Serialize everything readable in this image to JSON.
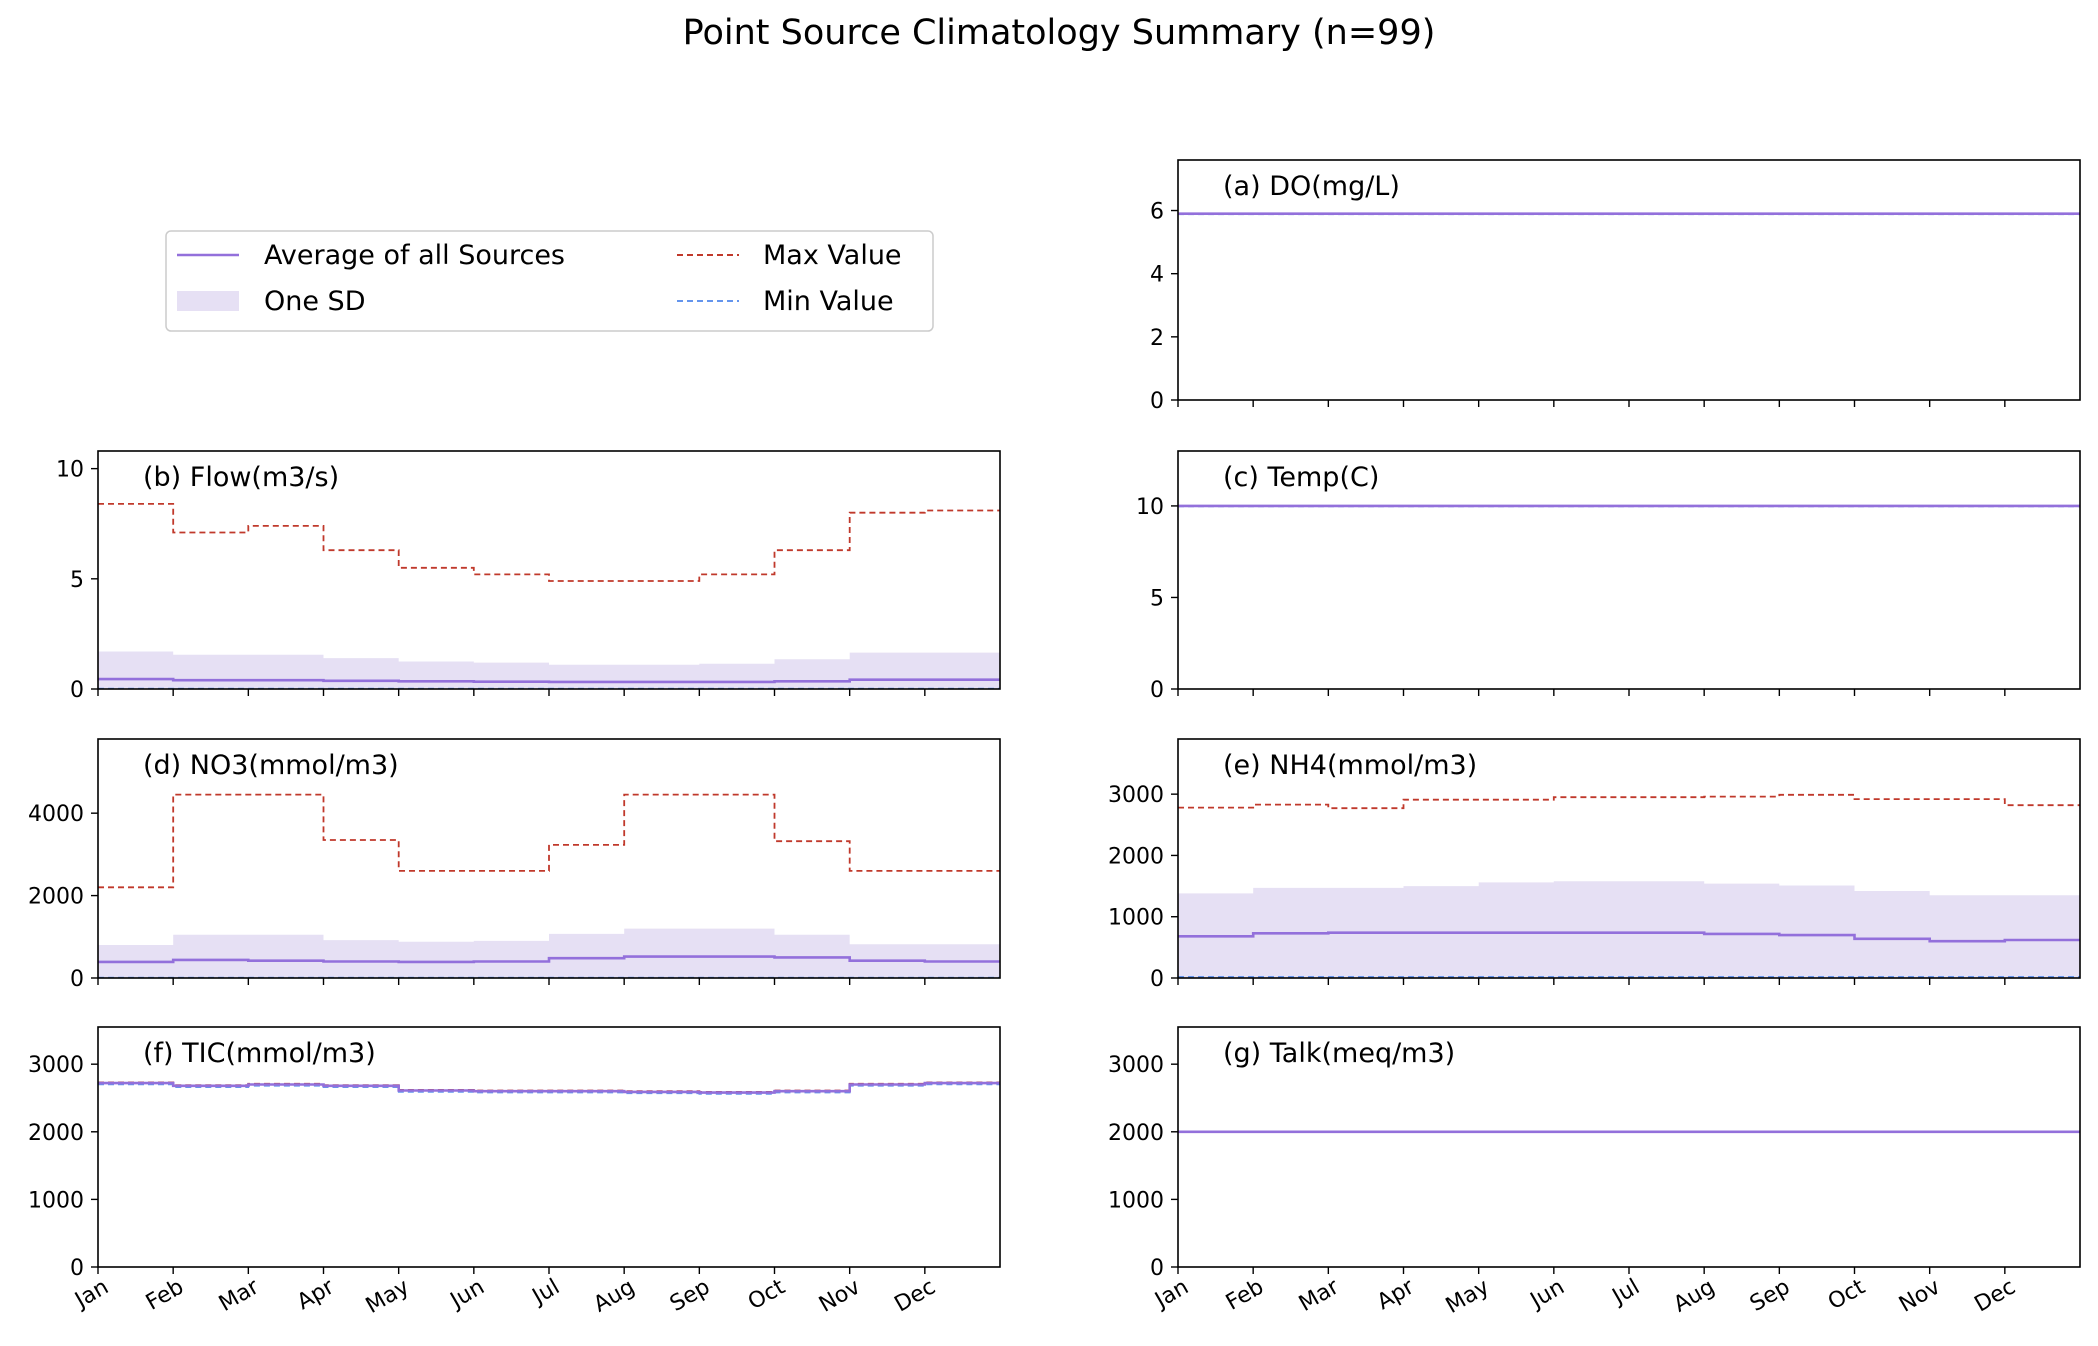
{
  "title": "Point Source Climatology Summary (n=99)",
  "colors": {
    "mean": "#9370DB",
    "sd": "#E6E0F4",
    "max": "#C0392B",
    "min": "#6495ED"
  },
  "legend": {
    "mean": "Average of all Sources",
    "sd": "One SD",
    "max": "Max Value",
    "min": "Min Value"
  },
  "months": [
    "Jan",
    "Feb",
    "Mar",
    "Apr",
    "May",
    "Jun",
    "Jul",
    "Aug",
    "Sep",
    "Oct",
    "Nov",
    "Dec"
  ],
  "chart_data": [
    {
      "id": "a",
      "type": "line",
      "title": "(a) DO(mg/L)",
      "ylim": [
        0,
        7.6
      ],
      "yticks": [
        0,
        2,
        4,
        6
      ],
      "xticklabels": false,
      "series": [
        {
          "role": "mean",
          "values": [
            5.9,
            5.9,
            5.9,
            5.9,
            5.9,
            5.9,
            5.9,
            5.9,
            5.9,
            5.9,
            5.9,
            5.9
          ]
        },
        {
          "role": "max",
          "values": [
            5.9,
            5.9,
            5.9,
            5.9,
            5.9,
            5.9,
            5.9,
            5.9,
            5.9,
            5.9,
            5.9,
            5.9
          ]
        },
        {
          "role": "min",
          "values": [
            5.88,
            5.88,
            5.88,
            5.88,
            5.88,
            5.88,
            5.88,
            5.88,
            5.88,
            5.88,
            5.88,
            5.88
          ]
        }
      ]
    },
    {
      "id": "b",
      "type": "line",
      "title": "(b) Flow(m3/s)",
      "ylim": [
        0,
        10.8
      ],
      "yticks": [
        0,
        5,
        10
      ],
      "xticklabels": false,
      "series": [
        {
          "role": "sd_upper",
          "values": [
            1.7,
            1.55,
            1.55,
            1.4,
            1.25,
            1.2,
            1.1,
            1.1,
            1.15,
            1.35,
            1.65,
            1.65
          ]
        },
        {
          "role": "mean",
          "values": [
            0.45,
            0.4,
            0.4,
            0.37,
            0.35,
            0.33,
            0.32,
            0.32,
            0.32,
            0.35,
            0.42,
            0.42
          ]
        },
        {
          "role": "max",
          "values": [
            8.4,
            7.1,
            7.4,
            6.3,
            5.5,
            5.2,
            4.9,
            4.9,
            5.2,
            6.3,
            8.0,
            8.1
          ]
        },
        {
          "role": "min",
          "values": [
            0.02,
            0.02,
            0.02,
            0.02,
            0.02,
            0.02,
            0.02,
            0.02,
            0.02,
            0.02,
            0.02,
            0.02
          ]
        }
      ]
    },
    {
      "id": "c",
      "type": "line",
      "title": "(c) Temp(C)",
      "ylim": [
        0,
        13
      ],
      "yticks": [
        0,
        5,
        10
      ],
      "xticklabels": false,
      "series": [
        {
          "role": "mean",
          "values": [
            10,
            10,
            10,
            10,
            10,
            10,
            10,
            10,
            10,
            10,
            10,
            10
          ]
        },
        {
          "role": "max",
          "values": [
            10,
            10,
            10,
            10,
            10,
            10,
            10,
            10,
            10,
            10,
            10,
            10
          ]
        },
        {
          "role": "min",
          "values": [
            9.97,
            9.97,
            9.97,
            9.97,
            9.97,
            9.97,
            9.97,
            9.97,
            9.97,
            9.97,
            9.97,
            9.97
          ]
        }
      ]
    },
    {
      "id": "d",
      "type": "line",
      "title": "(d) NO3(mmol/m3)",
      "ylim": [
        0,
        5800
      ],
      "yticks": [
        0,
        2000,
        4000
      ],
      "xticklabels": false,
      "series": [
        {
          "role": "sd_upper",
          "values": [
            800,
            1050,
            1050,
            920,
            880,
            900,
            1070,
            1200,
            1200,
            1050,
            820,
            820
          ]
        },
        {
          "role": "mean",
          "values": [
            390,
            440,
            420,
            400,
            390,
            400,
            480,
            520,
            520,
            500,
            420,
            400
          ]
        },
        {
          "role": "max",
          "values": [
            2200,
            4450,
            4450,
            3350,
            2600,
            2600,
            3230,
            4450,
            4450,
            3320,
            2600,
            2600
          ]
        },
        {
          "role": "min",
          "values": [
            10,
            10,
            10,
            10,
            10,
            10,
            10,
            10,
            10,
            10,
            10,
            10
          ]
        }
      ]
    },
    {
      "id": "e",
      "type": "line",
      "title": "(e) NH4(mmol/m3)",
      "ylim": [
        0,
        3900
      ],
      "yticks": [
        0,
        1000,
        2000,
        3000
      ],
      "xticklabels": false,
      "series": [
        {
          "role": "sd_upper",
          "values": [
            1380,
            1470,
            1470,
            1500,
            1560,
            1580,
            1580,
            1540,
            1510,
            1420,
            1350,
            1350
          ]
        },
        {
          "role": "mean",
          "values": [
            680,
            730,
            740,
            740,
            740,
            740,
            740,
            720,
            700,
            640,
            600,
            620
          ]
        },
        {
          "role": "max",
          "values": [
            2780,
            2830,
            2770,
            2910,
            2910,
            2950,
            2950,
            2960,
            2990,
            2920,
            2920,
            2820
          ]
        },
        {
          "role": "min",
          "values": [
            20,
            20,
            20,
            20,
            20,
            20,
            20,
            20,
            20,
            20,
            20,
            20
          ]
        }
      ]
    },
    {
      "id": "f",
      "type": "line",
      "title": "(f) TIC(mmol/m3)",
      "ylim": [
        0,
        3550
      ],
      "yticks": [
        0,
        1000,
        2000,
        3000
      ],
      "xticklabels": true,
      "series": [
        {
          "role": "mean",
          "values": [
            2720,
            2680,
            2700,
            2680,
            2610,
            2600,
            2600,
            2590,
            2580,
            2600,
            2700,
            2720
          ]
        },
        {
          "role": "max",
          "values": [
            2730,
            2690,
            2710,
            2690,
            2620,
            2610,
            2610,
            2600,
            2590,
            2610,
            2710,
            2730
          ]
        },
        {
          "role": "min",
          "values": [
            2700,
            2660,
            2680,
            2660,
            2590,
            2580,
            2580,
            2570,
            2560,
            2580,
            2680,
            2700
          ]
        }
      ]
    },
    {
      "id": "g",
      "type": "line",
      "title": "(g) Talk(meq/m3)",
      "ylim": [
        0,
        3550
      ],
      "yticks": [
        0,
        1000,
        2000,
        3000
      ],
      "xticklabels": true,
      "series": [
        {
          "role": "mean",
          "values": [
            2000,
            2000,
            2000,
            2000,
            2000,
            2000,
            2000,
            2000,
            2000,
            2000,
            2000,
            2000
          ]
        },
        {
          "role": "max",
          "values": [
            2000,
            2000,
            2000,
            2000,
            2000,
            2000,
            2000,
            2000,
            2000,
            2000,
            2000,
            2000
          ]
        },
        {
          "role": "min",
          "values": [
            1995,
            1995,
            1995,
            1995,
            1995,
            1995,
            1995,
            1995,
            1995,
            1995,
            1995,
            1995
          ]
        }
      ]
    }
  ]
}
